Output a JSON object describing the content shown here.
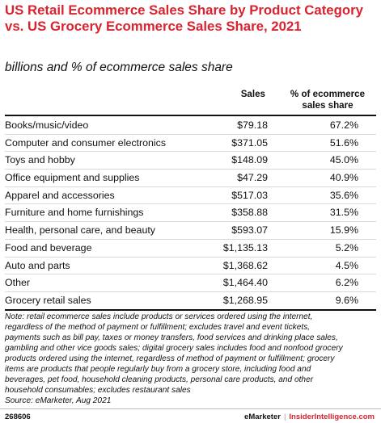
{
  "title": "US Retail Ecommerce Sales Share by Product Category vs. US Grocery Ecommerce Sales Share, 2021",
  "subtitle": "billions and % of ecommerce sales share",
  "chart_data": {
    "type": "table",
    "columns": [
      "",
      "Sales",
      "% of ecommerce sales share"
    ],
    "rows": [
      {
        "category": "Books/music/video",
        "sales": "$79.18",
        "share": "67.2%"
      },
      {
        "category": "Computer and consumer electronics",
        "sales": "$371.05",
        "share": "51.6%"
      },
      {
        "category": "Toys and hobby",
        "sales": "$148.09",
        "share": "45.0%"
      },
      {
        "category": "Office equipment and supplies",
        "sales": "$47.29",
        "share": "40.9%"
      },
      {
        "category": "Apparel and accessories",
        "sales": "$517.03",
        "share": "35.6%"
      },
      {
        "category": "Furniture and home furnishings",
        "sales": "$358.88",
        "share": "31.5%"
      },
      {
        "category": "Health, personal care, and beauty",
        "sales": "$593.07",
        "share": "15.9%"
      },
      {
        "category": "Food and beverage",
        "sales": "$1,135.13",
        "share": "5.2%"
      },
      {
        "category": "Auto and parts",
        "sales": "$1,368.62",
        "share": "4.5%"
      },
      {
        "category": "Other",
        "sales": "$1,464.40",
        "share": "6.2%"
      },
      {
        "category": "Grocery retail sales",
        "sales": "$1,268.95",
        "share": "9.6%"
      }
    ]
  },
  "note_lines": [
    "Note: retail ecommerce sales include products or services ordered using the internet,",
    "regardless of the method of payment or fulfillment; excludes travel and event tickets,",
    "payments such as bill pay, taxes or money transfers, food services and drinking place sales,",
    "gambling and other vice goods sales; digital grocery sales includes food and nonfood grocery",
    "products ordered using the internet, regardless of method of payment or fulfillment; grocery",
    "items are products that people regularly buy from a grocery store, including food and",
    "beverages, pet food, household cleaning products, personal care products, and other",
    "household consumables; excludes restaurant sales"
  ],
  "source": "Source: eMarketer, Aug 2021",
  "footer": {
    "chart_id": "268606",
    "brand_left": "eMarketer",
    "separator": "|",
    "brand_right": "InsiderIntelligence.com"
  }
}
